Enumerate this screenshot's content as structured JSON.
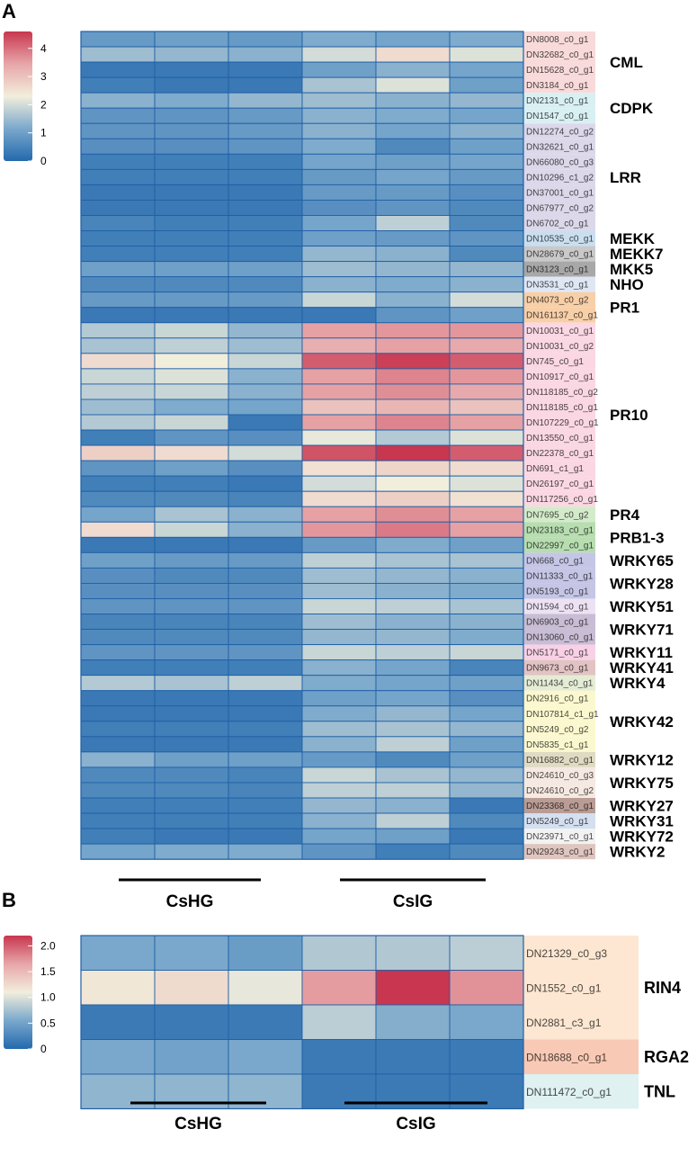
{
  "chart_data": [
    {
      "type": "heatmap",
      "panel": "A",
      "groups": [
        {
          "label": "CsHG",
          "columns": 3
        },
        {
          "label": "CsIG",
          "columns": 3
        }
      ],
      "colorbar": {
        "ticks": [
          "0",
          "1",
          "2",
          "3",
          "4"
        ],
        "range": [
          0,
          4.6
        ]
      },
      "rows": [
        {
          "gene": "DN8008_c0_g1",
          "bg": "#f9dada",
          "values": [
            0.9,
            1.0,
            0.9,
            1.2,
            1.1,
            1.2
          ]
        },
        {
          "gene": "DN32682_c0_g1",
          "bg": "#f9dada",
          "values": [
            1.5,
            1.4,
            1.3,
            2.0,
            2.6,
            2.1
          ]
        },
        {
          "gene": "DN15628_c0_g1",
          "bg": "#f9dada",
          "values": [
            0.3,
            0.3,
            0.3,
            1.0,
            1.3,
            1.1
          ]
        },
        {
          "gene": "DN3184_c0_g1",
          "bg": "#f9dada",
          "values": [
            0.4,
            0.3,
            0.3,
            1.6,
            2.1,
            1.0
          ]
        },
        {
          "gene": "DN2131_c0_g1",
          "bg": "#d9f0f3",
          "values": [
            1.3,
            1.2,
            1.4,
            1.5,
            1.3,
            1.4
          ]
        },
        {
          "gene": "DN1547_c0_g1",
          "bg": "#d9f0f3",
          "values": [
            0.8,
            0.8,
            0.9,
            1.3,
            1.2,
            1.1
          ]
        },
        {
          "gene": "DN12274_c0_g2",
          "bg": "#dcd8ea",
          "values": [
            0.8,
            0.8,
            0.9,
            1.3,
            1.1,
            1.3
          ]
        },
        {
          "gene": "DN32621_c0_g1",
          "bg": "#dcd8ea",
          "values": [
            0.7,
            0.7,
            0.8,
            1.2,
            0.6,
            1.0
          ]
        },
        {
          "gene": "DN66080_c0_g3",
          "bg": "#dcd8ea",
          "values": [
            0.4,
            0.4,
            0.4,
            1.1,
            1.0,
            1.1
          ]
        },
        {
          "gene": "DN10296_c1_g2",
          "bg": "#dcd8ea",
          "values": [
            0.4,
            0.4,
            0.4,
            0.9,
            1.1,
            0.9
          ]
        },
        {
          "gene": "DN37001_c0_g1",
          "bg": "#dcd8ea",
          "values": [
            0.3,
            0.3,
            0.3,
            0.9,
            0.9,
            0.7
          ]
        },
        {
          "gene": "DN67977_c0_g2",
          "bg": "#dcd8ea",
          "values": [
            0.3,
            0.3,
            0.3,
            0.7,
            0.8,
            0.6
          ]
        },
        {
          "gene": "DN6702_c0_g1",
          "bg": "#dcd8ea",
          "values": [
            0.5,
            0.4,
            0.4,
            1.1,
            1.8,
            0.6
          ]
        },
        {
          "gene": "DN10535_c0_g1",
          "bg": "#c9dff0",
          "values": [
            0.4,
            0.4,
            0.4,
            1.0,
            0.9,
            0.8
          ]
        },
        {
          "gene": "DN28679_c0_g1",
          "bg": "#c9c9c9",
          "values": [
            0.4,
            0.4,
            0.4,
            1.4,
            1.3,
            0.6
          ]
        },
        {
          "gene": "DN3123_c0_g1",
          "bg": "#a8a8a8",
          "values": [
            1.0,
            1.0,
            1.0,
            1.5,
            1.4,
            1.4
          ]
        },
        {
          "gene": "DN3531_c0_g1",
          "bg": "#dfe7f5",
          "values": [
            0.6,
            0.6,
            0.6,
            1.3,
            1.2,
            1.3
          ]
        },
        {
          "gene": "DN4073_c0_g2",
          "bg": "#f7cfa8",
          "values": [
            0.9,
            0.9,
            0.9,
            1.9,
            1.3,
            2.0
          ]
        },
        {
          "gene": "DN161137_c0_g1",
          "bg": "#f7cfa8",
          "values": [
            0.3,
            0.3,
            0.3,
            0.3,
            0.8,
            1.0
          ]
        },
        {
          "gene": "DN10031_c0_g1",
          "bg": "#fad7e3",
          "values": [
            1.7,
            1.9,
            1.4,
            3.5,
            3.6,
            3.6
          ]
        },
        {
          "gene": "DN10031_c0_g2",
          "bg": "#fad7e3",
          "values": [
            1.6,
            1.8,
            1.5,
            3.3,
            3.5,
            3.4
          ]
        },
        {
          "gene": "DN745_c0_g1",
          "bg": "#fad7e3",
          "values": [
            2.6,
            2.3,
            1.9,
            4.2,
            4.5,
            4.2
          ]
        },
        {
          "gene": "DN10917_c0_g1",
          "bg": "#fad7e3",
          "values": [
            1.9,
            2.1,
            1.3,
            3.5,
            3.8,
            3.6
          ]
        },
        {
          "gene": "DN118185_c0_g2",
          "bg": "#fad7e3",
          "values": [
            1.8,
            1.9,
            1.3,
            3.5,
            3.7,
            3.4
          ]
        },
        {
          "gene": "DN118185_c0_g1",
          "bg": "#fad7e3",
          "values": [
            1.5,
            1.2,
            1.1,
            3.0,
            3.2,
            3.0
          ]
        },
        {
          "gene": "DN107229_c0_g1",
          "bg": "#fad7e3",
          "values": [
            1.7,
            1.9,
            0.3,
            3.5,
            3.8,
            3.5
          ]
        },
        {
          "gene": "DN13550_c0_g1",
          "bg": "#fad7e3",
          "values": [
            0.4,
            0.8,
            0.7,
            2.2,
            1.7,
            2.1
          ]
        },
        {
          "gene": "DN22378_c0_g1",
          "bg": "#fad7e3",
          "values": [
            2.8,
            2.6,
            2.0,
            4.3,
            4.6,
            4.2
          ]
        },
        {
          "gene": "DN691_c1_g1",
          "bg": "#fad7e3",
          "values": [
            0.8,
            1.0,
            0.7,
            2.5,
            2.7,
            2.6
          ]
        },
        {
          "gene": "DN26197_c0_g1",
          "bg": "#fad7e3",
          "values": [
            0.4,
            0.4,
            0.3,
            2.0,
            2.3,
            2.1
          ]
        },
        {
          "gene": "DN117256_c0_g1",
          "bg": "#fad7e3",
          "values": [
            0.6,
            0.6,
            0.5,
            2.6,
            2.8,
            2.5
          ]
        },
        {
          "gene": "DN7695_c0_g2",
          "bg": "#d4ebcb",
          "values": [
            1.1,
            1.6,
            1.3,
            3.5,
            3.7,
            3.5
          ]
        },
        {
          "gene": "DN23183_c0_g1",
          "bg": "#b7ddb0",
          "values": [
            2.6,
            1.9,
            1.3,
            3.6,
            3.9,
            3.5
          ]
        },
        {
          "gene": "DN22997_c0_g1",
          "bg": "#b7ddb0",
          "values": [
            0.3,
            0.3,
            0.3,
            0.9,
            1.2,
            1.0
          ]
        },
        {
          "gene": "DN668_c0_g1",
          "bg": "#c5c6e6",
          "values": [
            1.0,
            0.9,
            0.9,
            1.8,
            1.6,
            1.6
          ]
        },
        {
          "gene": "DN11333_c0_g1",
          "bg": "#c5c6e6",
          "values": [
            0.7,
            0.6,
            0.6,
            1.5,
            1.4,
            1.3
          ]
        },
        {
          "gene": "DN5193_c0_g1",
          "bg": "#c5c6e6",
          "values": [
            0.7,
            0.7,
            0.7,
            1.5,
            1.3,
            1.2
          ]
        },
        {
          "gene": "DN1594_c0_g1",
          "bg": "#ece2f3",
          "values": [
            0.8,
            0.8,
            0.8,
            1.9,
            1.8,
            1.6
          ]
        },
        {
          "gene": "DN6903_c0_g1",
          "bg": "#c8bdd4",
          "values": [
            0.5,
            0.5,
            0.5,
            1.5,
            1.3,
            1.3
          ]
        },
        {
          "gene": "DN13060_c0_g1",
          "bg": "#c8bdd4",
          "values": [
            0.6,
            0.6,
            0.6,
            1.4,
            1.4,
            1.2
          ]
        },
        {
          "gene": "DN5171_c0_g1",
          "bg": "#f8d1e6",
          "values": [
            0.8,
            0.8,
            0.8,
            1.9,
            1.8,
            1.9
          ]
        },
        {
          "gene": "DN9673_c0_g1",
          "bg": "#e2c3c3",
          "values": [
            0.4,
            0.4,
            0.4,
            1.3,
            1.1,
            0.5
          ]
        },
        {
          "gene": "DN11434_c0_g1",
          "bg": "#e5ecd5",
          "values": [
            1.7,
            1.6,
            1.8,
            1.2,
            1.1,
            1.0
          ]
        },
        {
          "gene": "DN2916_c0_g1",
          "bg": "#fbf8cf",
          "values": [
            0.3,
            0.3,
            0.3,
            1.0,
            1.1,
            0.7
          ]
        },
        {
          "gene": "DN107814_c1_g1",
          "bg": "#fbf8cf",
          "values": [
            0.3,
            0.3,
            0.3,
            1.2,
            1.4,
            1.1
          ]
        },
        {
          "gene": "DN5249_c0_g2",
          "bg": "#fbf8cf",
          "values": [
            0.4,
            0.4,
            0.4,
            1.5,
            1.6,
            1.4
          ]
        },
        {
          "gene": "DN5835_c1_g1",
          "bg": "#fbf8cf",
          "values": [
            0.3,
            0.3,
            0.3,
            1.3,
            1.8,
            1.0
          ]
        },
        {
          "gene": "DN16882_c0_g1",
          "bg": "#e0dac3",
          "values": [
            1.3,
            1.0,
            1.0,
            0.9,
            0.6,
            1.0
          ]
        },
        {
          "gene": "DN24610_c0_g3",
          "bg": "#f5e9e2",
          "values": [
            0.6,
            0.6,
            0.5,
            1.9,
            1.6,
            1.4
          ]
        },
        {
          "gene": "DN24610_c0_g2",
          "bg": "#f5e9e2",
          "values": [
            0.6,
            0.6,
            0.5,
            1.8,
            1.8,
            1.4
          ]
        },
        {
          "gene": "DN23368_c0_g1",
          "bg": "#b99c94",
          "values": [
            0.4,
            0.4,
            0.4,
            1.4,
            1.3,
            0.3
          ]
        },
        {
          "gene": "DN5249_c0_g1",
          "bg": "#d4dff0",
          "values": [
            0.4,
            0.4,
            0.4,
            1.3,
            1.8,
            0.6
          ]
        },
        {
          "gene": "DN23971_c0_g1",
          "bg": "#f2f2f2",
          "values": [
            0.4,
            0.3,
            0.3,
            1.1,
            1.0,
            0.3
          ]
        },
        {
          "gene": "DN29243_c0_g1",
          "bg": "#dfc5bf",
          "values": [
            1.1,
            1.2,
            1.2,
            0.8,
            0.4,
            0.6
          ]
        }
      ],
      "families": [
        {
          "name": "CML",
          "start": 0,
          "end": 3
        },
        {
          "name": "CDPK",
          "start": 4,
          "end": 5
        },
        {
          "name": "LRR",
          "start": 6,
          "end": 12
        },
        {
          "name": "MEKK",
          "start": 13,
          "end": 13
        },
        {
          "name": "MEKK7",
          "start": 14,
          "end": 14
        },
        {
          "name": "MKK5",
          "start": 15,
          "end": 15
        },
        {
          "name": "NHO",
          "start": 16,
          "end": 16
        },
        {
          "name": "PR1",
          "start": 17,
          "end": 18
        },
        {
          "name": "PR10",
          "start": 19,
          "end": 30
        },
        {
          "name": "PR4",
          "start": 31,
          "end": 31
        },
        {
          "name": "PRB1-3",
          "start": 32,
          "end": 33
        },
        {
          "name": "WRKY65",
          "start": 34,
          "end": 34
        },
        {
          "name": "WRKY28",
          "start": 35,
          "end": 36
        },
        {
          "name": "WRKY51",
          "start": 37,
          "end": 37
        },
        {
          "name": "WRKY71",
          "start": 38,
          "end": 39
        },
        {
          "name": "WRKY11",
          "start": 40,
          "end": 40
        },
        {
          "name": "WRKY41",
          "start": 41,
          "end": 41
        },
        {
          "name": "WRKY4",
          "start": 42,
          "end": 42
        },
        {
          "name": "WRKY42",
          "start": 43,
          "end": 46
        },
        {
          "name": "WRKY12",
          "start": 47,
          "end": 47
        },
        {
          "name": "WRKY75",
          "start": 48,
          "end": 49
        },
        {
          "name": "WRKY27",
          "start": 50,
          "end": 50
        },
        {
          "name": "WRKY31",
          "start": 51,
          "end": 51
        },
        {
          "name": "WRKY72",
          "start": 52,
          "end": 52
        },
        {
          "name": "WRKY2",
          "start": 53,
          "end": 53
        }
      ]
    },
    {
      "type": "heatmap",
      "panel": "B",
      "groups": [
        {
          "label": "CsHG",
          "columns": 3
        },
        {
          "label": "CsIG",
          "columns": 3
        }
      ],
      "colorbar": {
        "ticks": [
          "0",
          "0.5",
          "1.0",
          "1.5",
          "2.0"
        ],
        "range": [
          0,
          2.2
        ]
      },
      "rows": [
        {
          "gene": "DN21329_c0_g3",
          "bg": "#fde7d2",
          "values": [
            0.55,
            0.55,
            0.45,
            0.8,
            0.8,
            0.85
          ]
        },
        {
          "gene": "DN1552_c0_g1",
          "bg": "#fde7d2",
          "values": [
            1.15,
            1.25,
            1.05,
            1.7,
            2.2,
            1.75
          ]
        },
        {
          "gene": "DN2881_c3_g1",
          "bg": "#fde7d2",
          "values": [
            0.15,
            0.15,
            0.15,
            0.85,
            0.6,
            0.55
          ]
        },
        {
          "gene": "DN18688_c0_g1",
          "bg": "#f8c9b4",
          "values": [
            0.55,
            0.5,
            0.55,
            0.15,
            0.15,
            0.15
          ]
        },
        {
          "gene": "DN111472_c0_g1",
          "bg": "#dff1f1",
          "values": [
            0.65,
            0.65,
            0.65,
            0.15,
            0.15,
            0.15
          ]
        }
      ],
      "families": [
        {
          "name": "RIN4",
          "start": 0,
          "end": 2
        },
        {
          "name": "RGA2",
          "start": 3,
          "end": 3
        },
        {
          "name": "TNL",
          "start": 4,
          "end": 4
        }
      ]
    }
  ]
}
